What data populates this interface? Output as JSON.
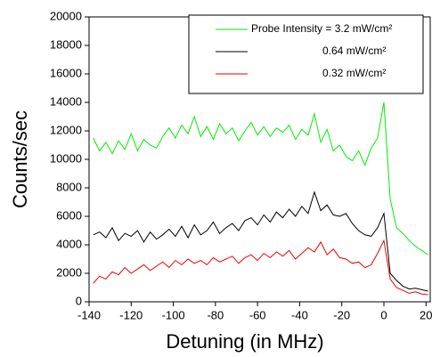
{
  "chart_data": {
    "type": "line",
    "xlabel": "Detuning (in MHz)",
    "ylabel": "Counts/sec",
    "x": [
      -138,
      -135,
      -132,
      -129,
      -126,
      -123,
      -120,
      -117,
      -114,
      -111,
      -108,
      -105,
      -102,
      -99,
      -96,
      -93,
      -90,
      -87,
      -84,
      -81,
      -78,
      -75,
      -72,
      -69,
      -66,
      -63,
      -60,
      -57,
      -54,
      -51,
      -48,
      -45,
      -42,
      -39,
      -36,
      -33,
      -30,
      -27,
      -24,
      -21,
      -18,
      -15,
      -12,
      -9,
      -6,
      -3,
      0,
      3,
      6,
      9,
      12,
      15,
      18,
      21
    ],
    "series": [
      {
        "name": "Probe Intensity = 3.2 mW/cm²",
        "color": "#00ee00",
        "values": [
          11500,
          10600,
          11200,
          10400,
          11300,
          10700,
          11800,
          10600,
          11400,
          11000,
          10800,
          11600,
          12200,
          11500,
          12400,
          11800,
          13000,
          11600,
          12300,
          11400,
          12500,
          11800,
          12200,
          11300,
          12000,
          12600,
          11700,
          12300,
          11600,
          12200,
          11900,
          12400,
          11400,
          12100,
          11700,
          13200,
          11200,
          12100,
          10600,
          11000,
          10200,
          9900,
          10600,
          9600,
          10800,
          11500,
          14000,
          7200,
          5200,
          4800,
          4300,
          3900,
          3600,
          3300
        ]
      },
      {
        "name": "0.64 mW/cm²",
        "color": "#000000",
        "values": [
          4700,
          4900,
          4500,
          5200,
          4300,
          4800,
          4600,
          5000,
          4200,
          4900,
          4400,
          4700,
          5100,
          4600,
          5300,
          4500,
          5400,
          4700,
          5000,
          5600,
          4800,
          5200,
          5500,
          5000,
          5700,
          5900,
          5400,
          6100,
          5600,
          6300,
          5900,
          6500,
          6000,
          6700,
          6200,
          7700,
          6400,
          6800,
          6100,
          6000,
          6200,
          5500,
          5000,
          4700,
          4600,
          5200,
          6200,
          2000,
          1500,
          1100,
          900,
          950,
          850,
          750
        ]
      },
      {
        "name": "0.32 mW/cm²",
        "color": "#ee0000",
        "values": [
          1300,
          1800,
          1600,
          2100,
          1900,
          2400,
          2000,
          2300,
          2600,
          2200,
          2500,
          2800,
          2400,
          2900,
          2600,
          3000,
          2700,
          2900,
          2600,
          3100,
          2800,
          3000,
          3200,
          2700,
          3100,
          3300,
          2900,
          3400,
          3100,
          3500,
          3200,
          3600,
          3000,
          3400,
          3800,
          3500,
          4200,
          3300,
          3700,
          3100,
          3000,
          2700,
          2800,
          2400,
          2600,
          3400,
          4300,
          1600,
          1000,
          800,
          600,
          700,
          550,
          500
        ]
      }
    ],
    "xlim": [
      -140,
      22
    ],
    "xticks": [
      -140,
      -120,
      -100,
      -80,
      -60,
      -40,
      -20,
      0,
      20
    ],
    "ylim": [
      0,
      20000
    ],
    "yticks": [
      0,
      2000,
      4000,
      6000,
      8000,
      10000,
      12000,
      14000,
      16000,
      18000,
      20000
    ],
    "legend": "upper right"
  }
}
